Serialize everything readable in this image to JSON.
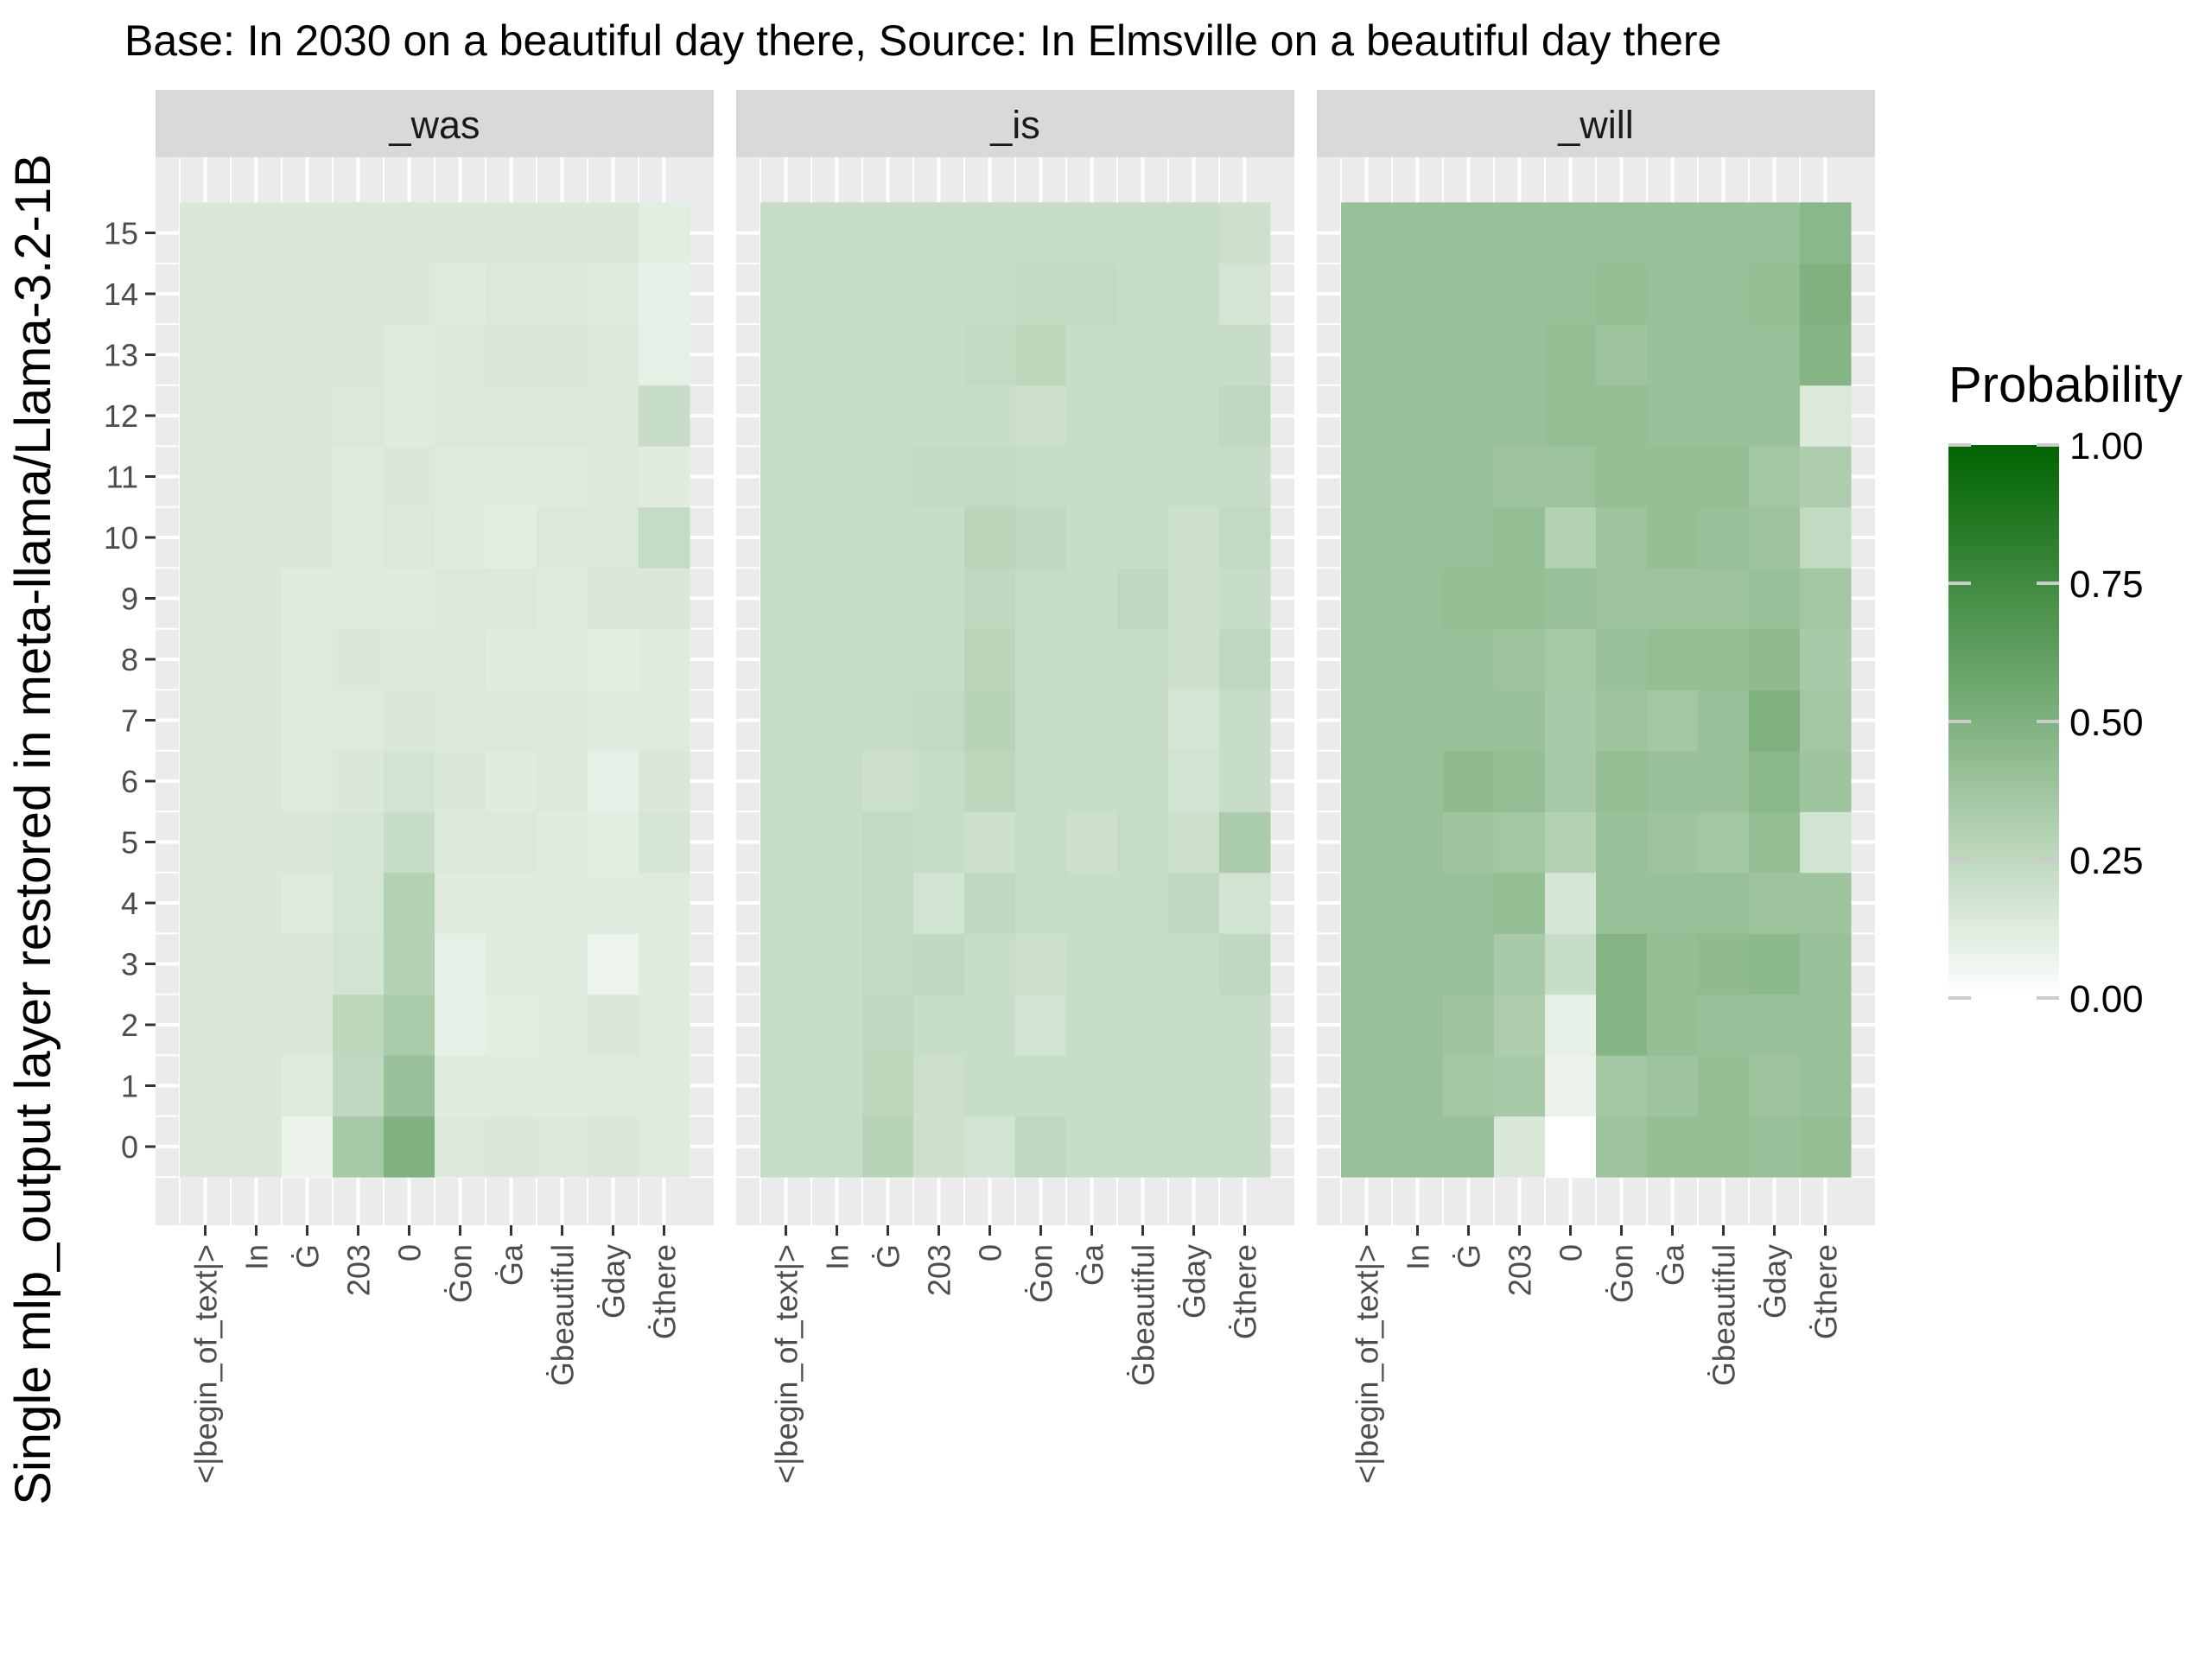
{
  "chart_data": {
    "type": "heatmap",
    "title": "Base: In 2030 on a beautiful day there, Source: In Elmsville on a beautiful day there",
    "ylabel": "Single mlp_output layer restored in meta-llama/Llama-3.2-1B",
    "xlabel": "",
    "x_categories": [
      "<|begin_of_text|>",
      "In",
      "Ġ",
      "203",
      "0",
      "Ġon",
      "Ġa",
      "Ġbeautiful",
      "Ġday",
      "Ġthere"
    ],
    "y_layers": [
      0,
      1,
      2,
      3,
      4,
      5,
      6,
      7,
      8,
      9,
      10,
      11,
      12,
      13,
      14,
      15
    ],
    "legend": {
      "title": "Probability",
      "ticks": [
        "0.00",
        "0.25",
        "0.50",
        "0.75",
        "1.00"
      ],
      "range": [
        0,
        1
      ],
      "low_color": "#ffffff",
      "high_color": "#006400",
      "placement": "right"
    },
    "panels": [
      {
        "name": "_was",
        "values": [
          [
            0.15,
            0.15,
            0.08,
            0.35,
            0.5,
            0.14,
            0.15,
            0.14,
            0.15,
            0.13
          ],
          [
            0.15,
            0.15,
            0.13,
            0.25,
            0.4,
            0.13,
            0.13,
            0.13,
            0.13,
            0.13
          ],
          [
            0.15,
            0.15,
            0.15,
            0.26,
            0.33,
            0.1,
            0.11,
            0.12,
            0.15,
            0.13
          ],
          [
            0.15,
            0.15,
            0.15,
            0.18,
            0.3,
            0.1,
            0.12,
            0.12,
            0.07,
            0.13
          ],
          [
            0.15,
            0.15,
            0.13,
            0.17,
            0.3,
            0.13,
            0.13,
            0.13,
            0.13,
            0.13
          ],
          [
            0.15,
            0.15,
            0.15,
            0.17,
            0.22,
            0.14,
            0.14,
            0.13,
            0.11,
            0.16
          ],
          [
            0.15,
            0.15,
            0.13,
            0.15,
            0.18,
            0.15,
            0.12,
            0.14,
            0.1,
            0.15
          ],
          [
            0.15,
            0.15,
            0.12,
            0.13,
            0.15,
            0.14,
            0.14,
            0.14,
            0.12,
            0.13
          ],
          [
            0.15,
            0.15,
            0.12,
            0.15,
            0.14,
            0.14,
            0.12,
            0.12,
            0.11,
            0.13
          ],
          [
            0.15,
            0.15,
            0.12,
            0.12,
            0.12,
            0.14,
            0.14,
            0.13,
            0.15,
            0.15
          ],
          [
            0.15,
            0.15,
            0.15,
            0.12,
            0.14,
            0.12,
            0.11,
            0.14,
            0.14,
            0.23
          ],
          [
            0.15,
            0.15,
            0.15,
            0.13,
            0.15,
            0.12,
            0.12,
            0.12,
            0.14,
            0.12
          ],
          [
            0.15,
            0.15,
            0.15,
            0.14,
            0.13,
            0.14,
            0.14,
            0.14,
            0.14,
            0.22
          ],
          [
            0.15,
            0.15,
            0.15,
            0.15,
            0.13,
            0.14,
            0.15,
            0.15,
            0.14,
            0.1
          ],
          [
            0.15,
            0.15,
            0.15,
            0.15,
            0.15,
            0.12,
            0.14,
            0.14,
            0.12,
            0.09
          ],
          [
            0.15,
            0.15,
            0.15,
            0.15,
            0.15,
            0.15,
            0.15,
            0.15,
            0.15,
            0.11
          ]
        ]
      },
      {
        "name": "_is",
        "values": [
          [
            0.22,
            0.22,
            0.28,
            0.2,
            0.18,
            0.25,
            0.22,
            0.22,
            0.22,
            0.22
          ],
          [
            0.22,
            0.22,
            0.26,
            0.2,
            0.22,
            0.22,
            0.22,
            0.22,
            0.22,
            0.22
          ],
          [
            0.22,
            0.22,
            0.25,
            0.22,
            0.22,
            0.18,
            0.22,
            0.22,
            0.22,
            0.22
          ],
          [
            0.22,
            0.22,
            0.24,
            0.25,
            0.22,
            0.2,
            0.22,
            0.22,
            0.22,
            0.25
          ],
          [
            0.22,
            0.22,
            0.24,
            0.18,
            0.25,
            0.23,
            0.22,
            0.22,
            0.25,
            0.18
          ],
          [
            0.22,
            0.22,
            0.24,
            0.22,
            0.2,
            0.23,
            0.2,
            0.23,
            0.2,
            0.33
          ],
          [
            0.22,
            0.22,
            0.2,
            0.22,
            0.26,
            0.22,
            0.22,
            0.22,
            0.18,
            0.22
          ],
          [
            0.22,
            0.22,
            0.22,
            0.24,
            0.28,
            0.22,
            0.22,
            0.22,
            0.17,
            0.22
          ],
          [
            0.22,
            0.22,
            0.22,
            0.22,
            0.27,
            0.22,
            0.22,
            0.22,
            0.2,
            0.25
          ],
          [
            0.22,
            0.22,
            0.22,
            0.22,
            0.25,
            0.23,
            0.22,
            0.25,
            0.2,
            0.22
          ],
          [
            0.22,
            0.22,
            0.22,
            0.22,
            0.27,
            0.25,
            0.22,
            0.22,
            0.2,
            0.24
          ],
          [
            0.22,
            0.22,
            0.22,
            0.24,
            0.24,
            0.23,
            0.22,
            0.22,
            0.22,
            0.22
          ],
          [
            0.22,
            0.22,
            0.22,
            0.22,
            0.22,
            0.2,
            0.22,
            0.22,
            0.22,
            0.25
          ],
          [
            0.22,
            0.22,
            0.22,
            0.22,
            0.24,
            0.26,
            0.22,
            0.22,
            0.22,
            0.22
          ],
          [
            0.22,
            0.22,
            0.22,
            0.22,
            0.22,
            0.24,
            0.24,
            0.22,
            0.22,
            0.17
          ],
          [
            0.22,
            0.22,
            0.22,
            0.22,
            0.22,
            0.22,
            0.22,
            0.22,
            0.22,
            0.2
          ]
        ]
      },
      {
        "name": "_will",
        "values": [
          [
            0.4,
            0.4,
            0.4,
            0.15,
            0.0,
            0.38,
            0.42,
            0.42,
            0.4,
            0.42
          ],
          [
            0.4,
            0.4,
            0.36,
            0.34,
            0.08,
            0.36,
            0.38,
            0.42,
            0.38,
            0.4
          ],
          [
            0.4,
            0.4,
            0.38,
            0.32,
            0.1,
            0.48,
            0.42,
            0.4,
            0.4,
            0.4
          ],
          [
            0.4,
            0.4,
            0.4,
            0.34,
            0.22,
            0.48,
            0.42,
            0.44,
            0.45,
            0.4
          ],
          [
            0.4,
            0.4,
            0.4,
            0.42,
            0.16,
            0.4,
            0.4,
            0.4,
            0.38,
            0.38
          ],
          [
            0.4,
            0.4,
            0.38,
            0.36,
            0.3,
            0.4,
            0.38,
            0.36,
            0.42,
            0.18
          ],
          [
            0.4,
            0.4,
            0.44,
            0.42,
            0.34,
            0.42,
            0.4,
            0.4,
            0.46,
            0.38
          ],
          [
            0.4,
            0.4,
            0.4,
            0.4,
            0.34,
            0.38,
            0.36,
            0.4,
            0.5,
            0.36
          ],
          [
            0.4,
            0.4,
            0.4,
            0.38,
            0.35,
            0.4,
            0.42,
            0.42,
            0.44,
            0.34
          ],
          [
            0.4,
            0.4,
            0.42,
            0.42,
            0.4,
            0.38,
            0.38,
            0.38,
            0.4,
            0.36
          ],
          [
            0.4,
            0.4,
            0.4,
            0.42,
            0.3,
            0.38,
            0.42,
            0.4,
            0.38,
            0.24
          ],
          [
            0.4,
            0.4,
            0.4,
            0.38,
            0.38,
            0.42,
            0.42,
            0.42,
            0.36,
            0.32
          ],
          [
            0.4,
            0.4,
            0.4,
            0.4,
            0.42,
            0.42,
            0.4,
            0.4,
            0.4,
            0.14
          ],
          [
            0.4,
            0.4,
            0.4,
            0.4,
            0.42,
            0.38,
            0.4,
            0.4,
            0.4,
            0.48
          ],
          [
            0.4,
            0.4,
            0.4,
            0.4,
            0.4,
            0.42,
            0.4,
            0.4,
            0.42,
            0.5
          ],
          [
            0.4,
            0.4,
            0.4,
            0.4,
            0.4,
            0.4,
            0.4,
            0.4,
            0.4,
            0.46
          ]
        ]
      }
    ]
  }
}
